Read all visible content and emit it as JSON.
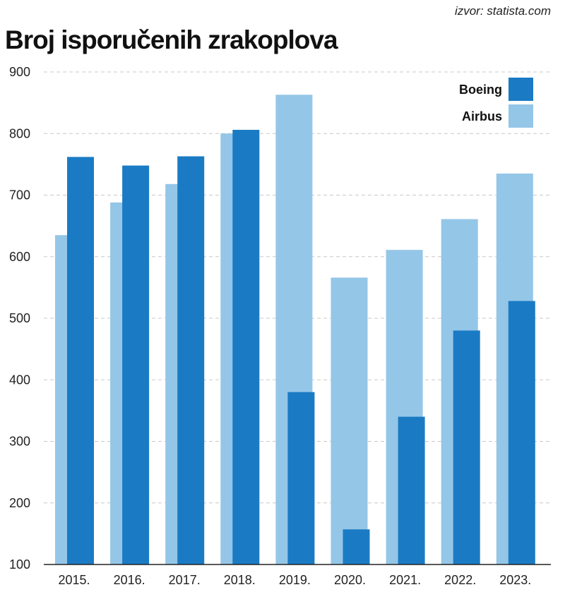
{
  "source": "izvor: statista.com",
  "colors": {
    "boeing": "#1a7bc4",
    "airbus": "#94c6e7",
    "grid": "#c8c8c8",
    "axis": "#222222"
  },
  "chart_data": {
    "type": "bar",
    "title": "Broj isporučenih zrakoplova",
    "xlabel": "",
    "ylabel": "",
    "categories": [
      "2015.",
      "2016.",
      "2017.",
      "2018.",
      "2019.",
      "2020.",
      "2021.",
      "2022.",
      "2023."
    ],
    "series": [
      {
        "name": "Airbus",
        "values": [
          635,
          688,
          718,
          800,
          863,
          566,
          611,
          661,
          735
        ]
      },
      {
        "name": "Boeing",
        "values": [
          762,
          748,
          763,
          806,
          380,
          157,
          340,
          480,
          528
        ]
      }
    ],
    "ylim": [
      100,
      900
    ],
    "yticks": [
      100,
      200,
      300,
      400,
      500,
      600,
      700,
      800,
      900
    ],
    "grid": true,
    "legend_position": "top-right"
  }
}
